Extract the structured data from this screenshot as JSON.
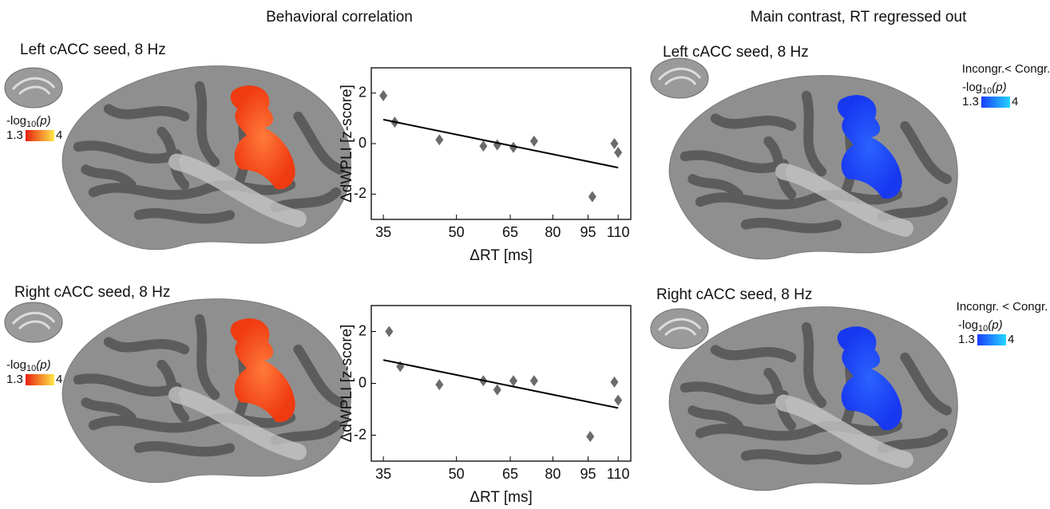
{
  "headings": [
    "Behavioral correlation",
    "Main contrast, RT regressed out"
  ],
  "panels": [
    {
      "label": "Left cACC seed, 8 Hz",
      "scale": {
        "prefix": "-log",
        "sub": "10",
        "suffix": "(p)",
        "min": 1.3,
        "max": 4
      }
    },
    {
      "label": "Right cACC seed, 8 Hz",
      "scale": {
        "prefix": "-log",
        "sub": "10",
        "suffix": "(p)",
        "min": 1.3,
        "max": 4
      }
    },
    {
      "label": "Left cACC seed, 8 Hz",
      "contrast": "Incongr.< Congr.",
      "scale": {
        "prefix": "-log",
        "sub": "10",
        "suffix": "(p)",
        "min": 1.3,
        "max": 4
      }
    },
    {
      "label": "Right cACC seed, 8 Hz",
      "contrast": "Incongr. < Congr.",
      "scale": {
        "prefix": "-log",
        "sub": "10",
        "suffix": "(p)",
        "min": 1.3,
        "max": 4
      }
    }
  ],
  "chart_data": [
    {
      "type": "scatter",
      "x_label": "ΔRT [ms]",
      "y_label": "ΔdWPLI [z-score]",
      "color": "#6b6b6b",
      "log_x": true,
      "x": [
        35,
        37,
        46,
        57,
        61,
        66,
        73,
        97,
        108,
        110
      ],
      "values": [
        1.9,
        0.85,
        0.15,
        -0.1,
        -0.05,
        -0.15,
        0.1,
        -2.1,
        0,
        -0.35
      ],
      "fit": {
        "x": [
          35,
          110
        ],
        "values": [
          0.95,
          -0.95
        ],
        "color": "#000000"
      },
      "xlim": [
        33,
        117
      ],
      "xticks": [
        35,
        50,
        65,
        80,
        95,
        110
      ],
      "ylim": [
        -3,
        3
      ],
      "yticks": [
        -2,
        0,
        2
      ]
    },
    {
      "type": "scatter",
      "x_label": "ΔRT [ms]",
      "y_label": "ΔdWPLI [z-score]",
      "color": "#6b6b6b",
      "log_x": true,
      "x": [
        36,
        38,
        46,
        57,
        61,
        66,
        73,
        96,
        108,
        110
      ],
      "values": [
        2.0,
        0.65,
        -0.05,
        0.1,
        -0.25,
        0.1,
        0.1,
        -2.05,
        0.05,
        -0.65
      ],
      "fit": {
        "x": [
          35,
          110
        ],
        "values": [
          0.9,
          -0.95
        ],
        "color": "#000000"
      },
      "xlim": [
        33,
        117
      ],
      "xticks": [
        35,
        50,
        65,
        80,
        95,
        110
      ],
      "ylim": [
        -3,
        3
      ],
      "yticks": [
        -2,
        0,
        2
      ]
    }
  ]
}
